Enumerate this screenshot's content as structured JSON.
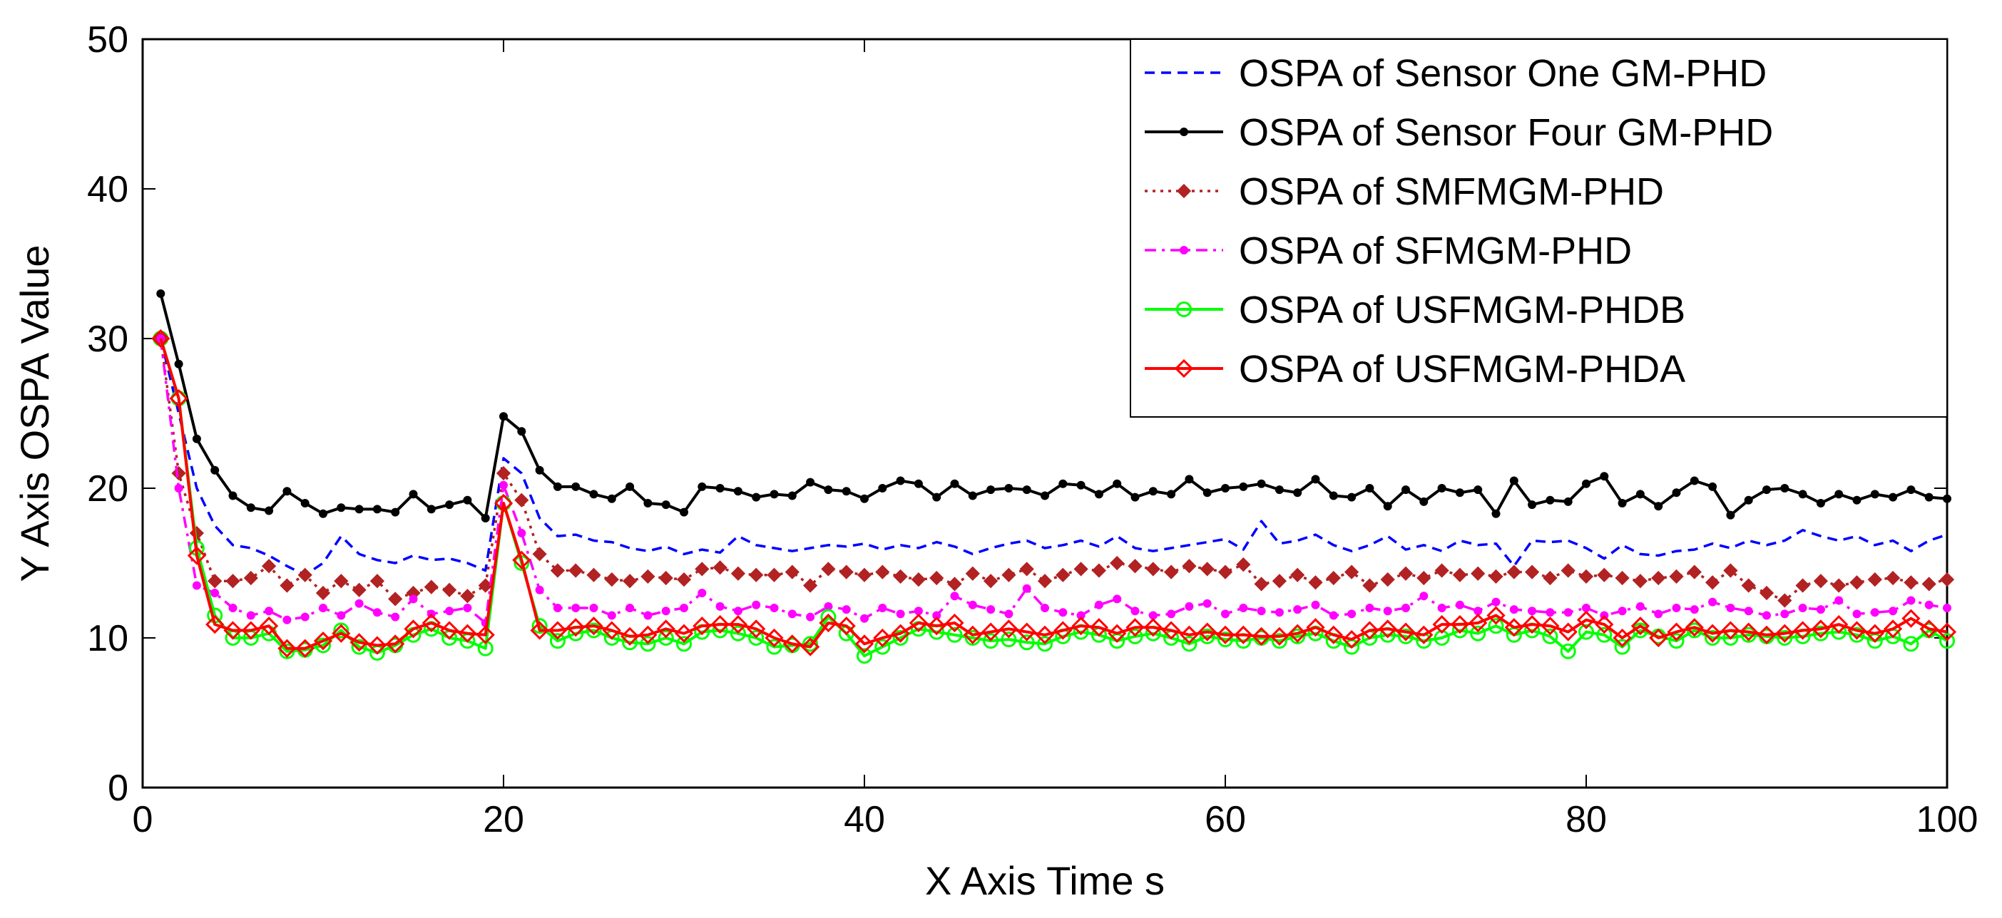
{
  "chart_data": {
    "type": "line",
    "title": "",
    "xlabel": "X Axis Time s",
    "ylabel": "Y Axis OSPA Value",
    "xlim": [
      0,
      100
    ],
    "ylim": [
      0,
      50
    ],
    "xticks": [
      "0",
      "20",
      "40",
      "60",
      "80",
      "100"
    ],
    "yticks": [
      "0",
      "10",
      "20",
      "30",
      "40",
      "50"
    ],
    "grid": false,
    "legend_position": "top-right",
    "x": [
      1,
      2,
      3,
      4,
      5,
      6,
      7,
      8,
      9,
      10,
      11,
      12,
      13,
      14,
      15,
      16,
      17,
      18,
      19,
      20,
      21,
      22,
      23,
      24,
      25,
      26,
      27,
      28,
      29,
      30,
      31,
      32,
      33,
      34,
      35,
      36,
      37,
      38,
      39,
      40,
      41,
      42,
      43,
      44,
      45,
      46,
      47,
      48,
      49,
      50,
      51,
      52,
      53,
      54,
      55,
      56,
      57,
      58,
      59,
      60,
      61,
      62,
      63,
      64,
      65,
      66,
      67,
      68,
      69,
      70,
      71,
      72,
      73,
      74,
      75,
      76,
      77,
      78,
      79,
      80,
      81,
      82,
      83,
      84,
      85,
      86,
      87,
      88,
      89,
      90,
      91,
      92,
      93,
      94,
      95,
      96,
      97,
      98,
      99,
      100
    ],
    "series": [
      {
        "name": "OSPA of Sensor One GM-PHD",
        "color": "#0000ff",
        "dash": "dashed",
        "marker": "none",
        "values": [
          30.0,
          25.0,
          20.0,
          17.5,
          16.2,
          16.0,
          15.5,
          14.8,
          14.2,
          15.0,
          16.8,
          15.6,
          15.2,
          15.0,
          15.5,
          15.2,
          15.3,
          15.0,
          14.5,
          22.0,
          21.0,
          18.0,
          16.8,
          16.9,
          16.5,
          16.4,
          16.0,
          15.8,
          16.1,
          15.6,
          15.9,
          15.7,
          16.8,
          16.2,
          16.0,
          15.8,
          16.0,
          16.2,
          16.1,
          16.3,
          15.9,
          16.2,
          16.0,
          16.4,
          16.1,
          15.6,
          16.0,
          16.3,
          16.5,
          16.0,
          16.2,
          16.5,
          16.1,
          16.8,
          16.0,
          15.8,
          16.0,
          16.2,
          16.4,
          16.6,
          15.9,
          17.8,
          16.3,
          16.5,
          16.9,
          16.2,
          15.8,
          16.2,
          16.8,
          15.9,
          16.2,
          15.8,
          16.5,
          16.2,
          16.3,
          14.8,
          16.5,
          16.4,
          16.5,
          16.0,
          15.3,
          16.2,
          15.6,
          15.5,
          15.8,
          15.9,
          16.3,
          16.0,
          16.5,
          16.2,
          16.5,
          17.2,
          16.8,
          16.5,
          16.8,
          16.2,
          16.5,
          15.8,
          16.5,
          16.9
        ]
      },
      {
        "name": "OSPA of Sensor Four GM-PHD",
        "color": "#000000",
        "dash": "solid",
        "marker": "dot",
        "values": [
          33.0,
          28.3,
          23.3,
          21.2,
          19.5,
          18.7,
          18.5,
          19.8,
          19.0,
          18.3,
          18.7,
          18.6,
          18.6,
          18.4,
          19.6,
          18.6,
          18.9,
          19.2,
          18.0,
          24.8,
          23.8,
          21.2,
          20.1,
          20.1,
          19.6,
          19.3,
          20.1,
          19.0,
          18.9,
          18.4,
          20.1,
          20.0,
          19.8,
          19.4,
          19.6,
          19.5,
          20.4,
          19.9,
          19.8,
          19.3,
          20.0,
          20.5,
          20.3,
          19.4,
          20.3,
          19.5,
          19.9,
          20.0,
          19.9,
          19.5,
          20.3,
          20.2,
          19.6,
          20.3,
          19.4,
          19.8,
          19.6,
          20.6,
          19.7,
          20.0,
          20.1,
          20.3,
          19.9,
          19.7,
          20.6,
          19.5,
          19.4,
          20.0,
          18.8,
          19.9,
          19.1,
          20.0,
          19.7,
          19.9,
          18.3,
          20.5,
          18.9,
          19.2,
          19.1,
          20.3,
          20.8,
          19.0,
          19.6,
          18.8,
          19.7,
          20.5,
          20.1,
          18.2,
          19.2,
          19.9,
          20.0,
          19.6,
          19.0,
          19.6,
          19.2,
          19.6,
          19.4,
          19.9,
          19.4,
          19.3
        ]
      },
      {
        "name": "OSPA of SMFMGM-PHD",
        "color": "#b22222",
        "dash": "dotted",
        "marker": "diamond-filled",
        "values": [
          30.0,
          21.0,
          17.0,
          13.8,
          13.8,
          14.0,
          14.8,
          13.5,
          14.2,
          13.0,
          13.8,
          13.2,
          13.8,
          12.6,
          13.0,
          13.4,
          13.2,
          12.8,
          13.5,
          21.0,
          19.2,
          15.6,
          14.5,
          14.5,
          14.2,
          13.9,
          13.8,
          14.1,
          14.0,
          13.9,
          14.6,
          14.7,
          14.3,
          14.2,
          14.2,
          14.4,
          13.5,
          14.6,
          14.4,
          14.2,
          14.4,
          14.1,
          13.9,
          14.0,
          13.6,
          14.3,
          13.8,
          14.2,
          14.6,
          13.8,
          14.2,
          14.6,
          14.5,
          15.0,
          14.8,
          14.6,
          14.4,
          14.8,
          14.6,
          14.4,
          14.9,
          13.6,
          13.8,
          14.2,
          13.7,
          14.0,
          14.4,
          13.5,
          13.9,
          14.3,
          14.0,
          14.5,
          14.2,
          14.3,
          14.1,
          14.4,
          14.4,
          14.0,
          14.5,
          14.1,
          14.2,
          14.0,
          13.8,
          14.0,
          14.1,
          14.4,
          13.7,
          14.5,
          13.5,
          13.0,
          12.5,
          13.5,
          13.8,
          13.5,
          13.7,
          13.9,
          14.0,
          13.7,
          13.6,
          13.9
        ]
      },
      {
        "name": "OSPA of SFMGM-PHD",
        "color": "#ff00ff",
        "dash": "dashdot",
        "marker": "dot",
        "values": [
          30.0,
          20.0,
          13.5,
          13.0,
          12.0,
          11.5,
          11.8,
          11.2,
          11.4,
          12.0,
          11.5,
          12.3,
          11.7,
          11.4,
          12.6,
          11.6,
          11.8,
          12.0,
          11.0,
          20.2,
          17.0,
          13.2,
          12.0,
          12.0,
          12.0,
          11.5,
          12.0,
          11.5,
          11.8,
          12.0,
          13.0,
          12.1,
          11.8,
          12.2,
          12.0,
          11.6,
          11.4,
          12.1,
          11.9,
          11.3,
          12.0,
          11.6,
          11.8,
          11.5,
          12.8,
          12.2,
          11.9,
          11.6,
          13.3,
          12.0,
          11.7,
          11.5,
          12.2,
          12.6,
          11.8,
          11.5,
          11.6,
          12.1,
          12.3,
          11.6,
          12.0,
          11.8,
          11.7,
          11.9,
          12.2,
          11.5,
          11.6,
          12.0,
          11.8,
          12.0,
          12.8,
          12.0,
          12.2,
          11.8,
          12.4,
          11.9,
          11.8,
          11.7,
          11.7,
          12.0,
          11.5,
          11.8,
          12.1,
          11.6,
          12.0,
          11.9,
          12.4,
          12.0,
          11.8,
          11.5,
          11.6,
          12.0,
          11.9,
          12.5,
          11.6,
          11.7,
          11.8,
          12.5,
          12.2,
          12.0
        ]
      },
      {
        "name": "OSPA of USFMGM-PHDB",
        "color": "#00ff00",
        "dash": "solid",
        "marker": "circle-open",
        "values": [
          30.0,
          26.0,
          16.0,
          11.5,
          10.0,
          10.0,
          10.3,
          9.1,
          9.2,
          9.5,
          10.5,
          9.4,
          9.0,
          9.5,
          10.2,
          10.6,
          10.0,
          9.8,
          9.3,
          19.0,
          15.0,
          10.8,
          9.8,
          10.3,
          10.5,
          10.0,
          9.7,
          9.6,
          10.0,
          9.6,
          10.4,
          10.5,
          10.3,
          10.0,
          9.4,
          9.5,
          9.6,
          11.4,
          10.3,
          8.8,
          9.4,
          10.0,
          10.6,
          10.4,
          10.2,
          10.0,
          9.8,
          9.9,
          9.7,
          9.6,
          10.1,
          10.4,
          10.2,
          9.8,
          10.1,
          10.3,
          10.0,
          9.6,
          10.1,
          9.9,
          9.8,
          10.0,
          9.8,
          10.1,
          10.3,
          9.8,
          9.4,
          10.0,
          10.2,
          10.1,
          9.8,
          10.0,
          10.5,
          10.3,
          10.8,
          10.2,
          10.5,
          10.1,
          9.1,
          10.4,
          10.2,
          9.4,
          10.5,
          10.1,
          9.8,
          10.5,
          10.0,
          10.0,
          10.2,
          10.1,
          10.0,
          10.1,
          10.3,
          10.4,
          10.2,
          9.8,
          10.1,
          9.6,
          10.5,
          9.8
        ]
      },
      {
        "name": "OSPA of USFMGM-PHDA",
        "color": "#ff0000",
        "dash": "solid",
        "marker": "diamond-open",
        "values": [
          30.0,
          26.0,
          15.5,
          10.9,
          10.5,
          10.5,
          10.8,
          9.3,
          9.3,
          9.8,
          10.3,
          9.7,
          9.5,
          9.6,
          10.6,
          11.0,
          10.5,
          10.3,
          10.2,
          19.0,
          15.2,
          10.5,
          10.5,
          10.7,
          10.8,
          10.5,
          10.1,
          10.2,
          10.6,
          10.3,
          10.8,
          10.9,
          10.9,
          10.6,
          10.0,
          9.6,
          9.4,
          11.0,
          10.8,
          9.6,
          10.0,
          10.3,
          11.0,
          10.8,
          11.0,
          10.2,
          10.4,
          10.6,
          10.4,
          10.2,
          10.5,
          10.8,
          10.7,
          10.3,
          10.7,
          10.7,
          10.5,
          10.2,
          10.4,
          10.2,
          10.2,
          10.1,
          10.1,
          10.3,
          10.7,
          10.2,
          9.9,
          10.5,
          10.6,
          10.4,
          10.2,
          10.9,
          10.9,
          11.0,
          11.5,
          10.7,
          10.9,
          10.8,
          10.4,
          11.2,
          10.9,
          10.0,
          10.8,
          10.0,
          10.4,
          10.7,
          10.3,
          10.5,
          10.4,
          10.2,
          10.3,
          10.5,
          10.6,
          10.9,
          10.5,
          10.3,
          10.6,
          11.3,
          10.6,
          10.4
        ]
      }
    ]
  }
}
